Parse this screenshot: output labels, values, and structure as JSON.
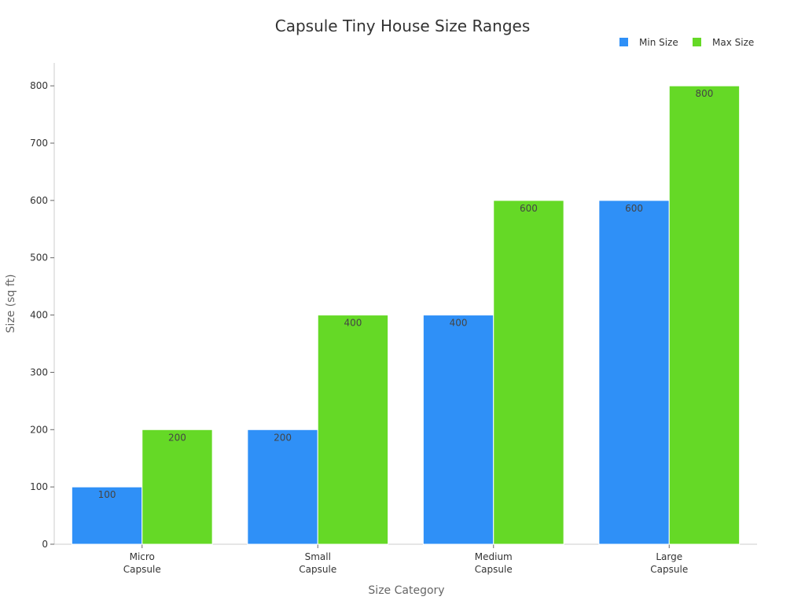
{
  "chart_data": {
    "type": "bar",
    "title": "Capsule Tiny House Size Ranges",
    "xlabel": "Size Category",
    "ylabel": "Size (sq ft)",
    "categories": [
      [
        "Micro",
        "Capsule"
      ],
      [
        "Small",
        "Capsule"
      ],
      [
        "Medium",
        "Capsule"
      ],
      [
        "Large",
        "Capsule"
      ]
    ],
    "series": [
      {
        "name": "Min Size",
        "color": "#2f90f7",
        "values": [
          100,
          200,
          400,
          600
        ]
      },
      {
        "name": "Max Size",
        "color": "#65d926",
        "values": [
          200,
          400,
          600,
          800
        ]
      }
    ],
    "ylim": [
      0,
      840
    ],
    "yticks": [
      0,
      100,
      200,
      300,
      400,
      500,
      600,
      700,
      800
    ],
    "legend_position": "top-right",
    "grid": false,
    "data_labels": true
  }
}
